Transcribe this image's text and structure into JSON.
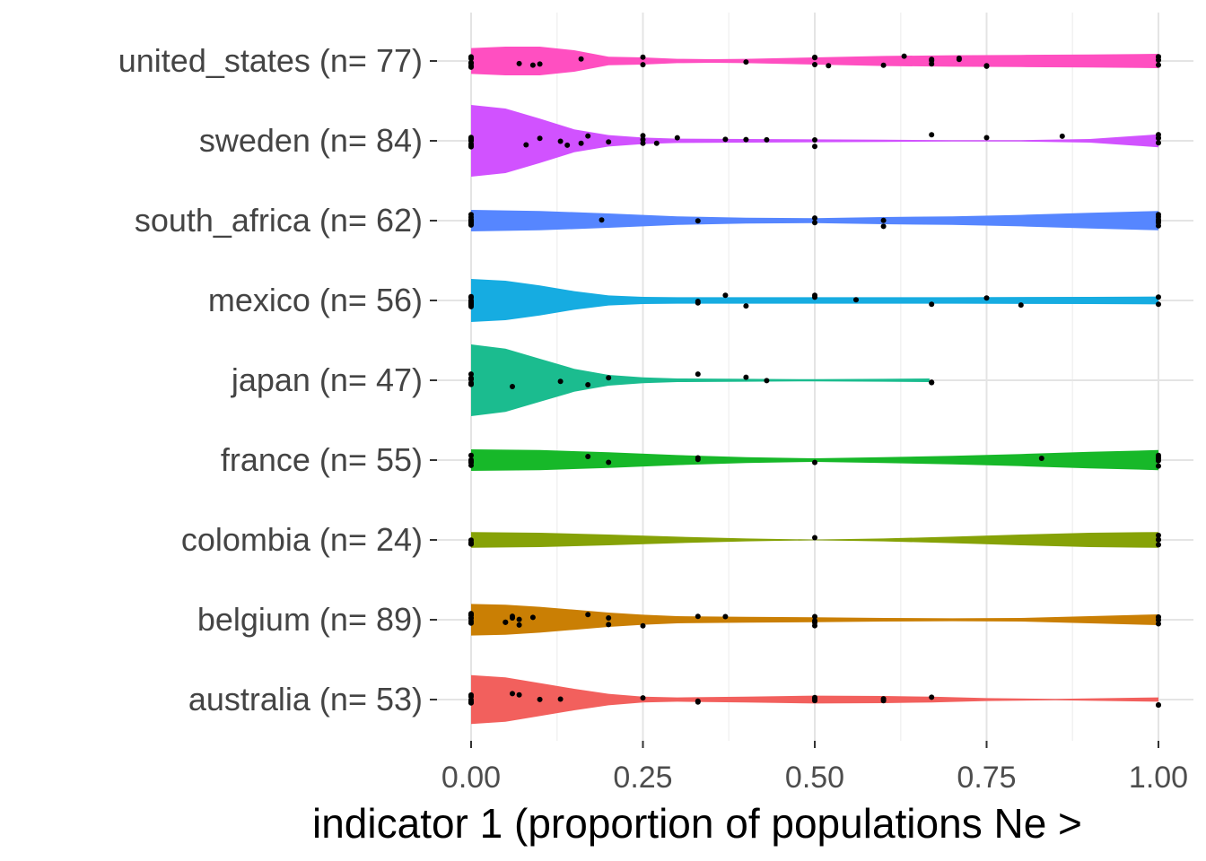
{
  "chart_data": {
    "type": "violin",
    "title": "",
    "xlabel": "indicator 1 (proportion of populations Ne >",
    "ylabel": "",
    "xlim": [
      0,
      1
    ],
    "xticks": [
      "0.00",
      "0.25",
      "0.50",
      "0.75",
      "1.00"
    ],
    "xtick_values": [
      0,
      0.25,
      0.5,
      0.75,
      1
    ],
    "grid": true,
    "legend": "none",
    "categories": [
      {
        "label": "united_states (n= 77)",
        "color": "#FF4FC1",
        "density": [
          [
            0,
            0.36
          ],
          [
            0.05,
            0.4
          ],
          [
            0.1,
            0.4
          ],
          [
            0.15,
            0.3
          ],
          [
            0.2,
            0.12
          ],
          [
            0.25,
            0.1
          ],
          [
            0.3,
            0.06
          ],
          [
            0.35,
            0.05
          ],
          [
            0.4,
            0.06
          ],
          [
            0.5,
            0.1
          ],
          [
            0.6,
            0.14
          ],
          [
            0.7,
            0.16
          ],
          [
            0.8,
            0.17
          ],
          [
            0.9,
            0.18
          ],
          [
            1,
            0.2
          ]
        ],
        "points": [
          0,
          0,
          0,
          0,
          0,
          0,
          0,
          0,
          0.07,
          0.09,
          0.1,
          0.16,
          0.25,
          0.25,
          0.4,
          0.5,
          0.5,
          0.5,
          0.52,
          0.6,
          0.63,
          0.67,
          0.67,
          0.67,
          0.71,
          0.71,
          0.75,
          0.75,
          1,
          1,
          1,
          1,
          1
        ]
      },
      {
        "label": "sweden (n= 84)",
        "color": "#D152FF",
        "density": [
          [
            0,
            1
          ],
          [
            0.05,
            0.9
          ],
          [
            0.1,
            0.62
          ],
          [
            0.15,
            0.32
          ],
          [
            0.2,
            0.16
          ],
          [
            0.25,
            0.09
          ],
          [
            0.3,
            0.06
          ],
          [
            0.4,
            0.05
          ],
          [
            0.5,
            0.04
          ],
          [
            0.6,
            0.03
          ],
          [
            0.7,
            0.02
          ],
          [
            0.8,
            0.02
          ],
          [
            0.9,
            0.05
          ],
          [
            1,
            0.18
          ]
        ],
        "points": [
          0,
          0,
          0,
          0,
          0,
          0,
          0,
          0,
          0,
          0.08,
          0.1,
          0.13,
          0.14,
          0.16,
          0.17,
          0.2,
          0.25,
          0.25,
          0.25,
          0.27,
          0.3,
          0.37,
          0.4,
          0.43,
          0.5,
          0.5,
          0.67,
          0.75,
          0.86,
          1,
          1,
          1,
          1
        ]
      },
      {
        "label": "south_africa (n= 62)",
        "color": "#5686FF",
        "density": [
          [
            0,
            0.3
          ],
          [
            0.1,
            0.27
          ],
          [
            0.2,
            0.2
          ],
          [
            0.3,
            0.12
          ],
          [
            0.4,
            0.08
          ],
          [
            0.5,
            0.07
          ],
          [
            0.6,
            0.1
          ],
          [
            0.7,
            0.12
          ],
          [
            0.8,
            0.16
          ],
          [
            0.9,
            0.22
          ],
          [
            1,
            0.27
          ]
        ],
        "points": [
          0,
          0,
          0,
          0,
          0,
          0,
          0,
          0,
          0,
          0,
          0.19,
          0.33,
          0.5,
          0.5,
          0.6,
          0.6,
          1,
          1,
          1,
          1,
          1,
          1,
          1,
          1
        ]
      },
      {
        "label": "mexico (n= 56)",
        "color": "#16ACE1",
        "density": [
          [
            0,
            0.6
          ],
          [
            0.05,
            0.55
          ],
          [
            0.1,
            0.42
          ],
          [
            0.15,
            0.26
          ],
          [
            0.2,
            0.14
          ],
          [
            0.25,
            0.1
          ],
          [
            0.3,
            0.09
          ],
          [
            0.5,
            0.09
          ],
          [
            0.7,
            0.09
          ],
          [
            0.9,
            0.1
          ],
          [
            1,
            0.11
          ]
        ],
        "points": [
          0,
          0,
          0,
          0,
          0,
          0,
          0,
          0,
          0,
          0,
          0.33,
          0.33,
          0.37,
          0.4,
          0.5,
          0.5,
          0.56,
          0.67,
          0.75,
          0.8,
          1,
          1
        ]
      },
      {
        "label": "japan (n= 47)",
        "color": "#1BBC8F",
        "density": [
          [
            0,
            1
          ],
          [
            0.05,
            0.88
          ],
          [
            0.1,
            0.6
          ],
          [
            0.15,
            0.32
          ],
          [
            0.2,
            0.15
          ],
          [
            0.25,
            0.08
          ],
          [
            0.3,
            0.05
          ],
          [
            0.4,
            0.04
          ],
          [
            0.5,
            0.03
          ],
          [
            0.6,
            0.04
          ],
          [
            0.667,
            0.05
          ]
        ],
        "points": [
          0,
          0,
          0,
          0,
          0,
          0,
          0,
          0.06,
          0.13,
          0.17,
          0.2,
          0.33,
          0.4,
          0.43,
          0.67,
          0.67
        ]
      },
      {
        "label": "france (n= 55)",
        "color": "#17B829",
        "density": [
          [
            0,
            0.3
          ],
          [
            0.1,
            0.28
          ],
          [
            0.2,
            0.22
          ],
          [
            0.3,
            0.14
          ],
          [
            0.4,
            0.08
          ],
          [
            0.5,
            0.05
          ],
          [
            0.6,
            0.08
          ],
          [
            0.7,
            0.12
          ],
          [
            0.8,
            0.17
          ],
          [
            0.9,
            0.23
          ],
          [
            1,
            0.28
          ]
        ],
        "points": [
          0,
          0,
          0,
          0,
          0,
          0,
          0,
          0.17,
          0.2,
          0.33,
          0.33,
          0.5,
          0.83,
          1,
          1,
          1,
          1,
          1,
          1
        ]
      },
      {
        "label": "colombia (n= 24)",
        "color": "#86A207",
        "density": [
          [
            0,
            0.22
          ],
          [
            0.1,
            0.2
          ],
          [
            0.2,
            0.15
          ],
          [
            0.3,
            0.09
          ],
          [
            0.4,
            0.04
          ],
          [
            0.5,
            0.01
          ],
          [
            0.6,
            0.04
          ],
          [
            0.7,
            0.09
          ],
          [
            0.8,
            0.15
          ],
          [
            0.9,
            0.2
          ],
          [
            1,
            0.22
          ]
        ],
        "points": [
          0,
          0,
          0,
          0,
          0.5,
          1,
          1,
          1,
          1
        ]
      },
      {
        "label": "belgium (n= 89)",
        "color": "#CA7F04",
        "density": [
          [
            0,
            0.44
          ],
          [
            0.05,
            0.42
          ],
          [
            0.1,
            0.36
          ],
          [
            0.15,
            0.28
          ],
          [
            0.2,
            0.2
          ],
          [
            0.25,
            0.14
          ],
          [
            0.3,
            0.1
          ],
          [
            0.4,
            0.08
          ],
          [
            0.5,
            0.07
          ],
          [
            0.6,
            0.05
          ],
          [
            0.7,
            0.04
          ],
          [
            0.8,
            0.05
          ],
          [
            0.9,
            0.1
          ],
          [
            1,
            0.15
          ]
        ],
        "points": [
          0,
          0,
          0,
          0,
          0,
          0,
          0,
          0,
          0,
          0.05,
          0.05,
          0.06,
          0.06,
          0.07,
          0.07,
          0.09,
          0.17,
          0.2,
          0.2,
          0.25,
          0.33,
          0.37,
          0.5,
          0.5,
          0.5,
          0.5,
          1,
          1,
          1,
          1
        ]
      },
      {
        "label": "australia (n= 53)",
        "color": "#F2605D",
        "density": [
          [
            0,
            0.68
          ],
          [
            0.05,
            0.62
          ],
          [
            0.1,
            0.46
          ],
          [
            0.15,
            0.3
          ],
          [
            0.2,
            0.16
          ],
          [
            0.25,
            0.08
          ],
          [
            0.3,
            0.06
          ],
          [
            0.4,
            0.08
          ],
          [
            0.5,
            0.11
          ],
          [
            0.6,
            0.1
          ],
          [
            0.67,
            0.08
          ],
          [
            0.75,
            0.04
          ],
          [
            0.85,
            0.02
          ],
          [
            1,
            0.06
          ]
        ],
        "points": [
          0,
          0,
          0,
          0,
          0,
          0,
          0,
          0.06,
          0.07,
          0.1,
          0.13,
          0.25,
          0.33,
          0.33,
          0.5,
          0.5,
          0.5,
          0.6,
          0.6,
          0.67,
          1,
          1
        ]
      }
    ]
  }
}
